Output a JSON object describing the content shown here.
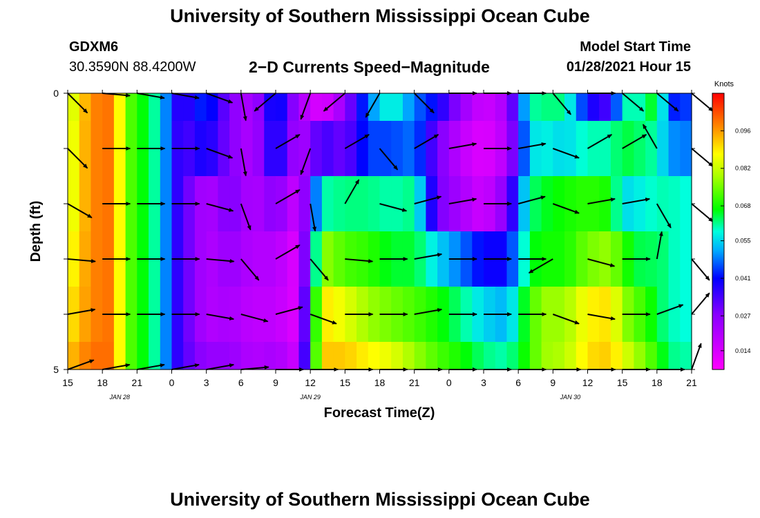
{
  "page": {
    "title": "University of Southern Mississippi Ocean Cube",
    "footer_title": "University of Southern Mississippi Ocean Cube",
    "station_id": "GDXM6",
    "coordinates": "30.3590N 88.4200W",
    "model_start_label": "Model Start Time",
    "model_start_value": "01/28/2021 Hour 15"
  },
  "chart_data": {
    "type": "heatmap",
    "title": "2−D Currents Speed−Magnitude",
    "xlabel": "Forecast Time(Z)",
    "ylabel": "Depth (ft)",
    "x_hours": [
      0,
      3,
      6,
      9,
      12,
      15,
      18,
      21,
      24,
      27,
      30,
      33,
      36,
      39,
      42,
      45,
      48,
      51,
      54
    ],
    "x_tick_labels": [
      "15",
      "18",
      "21",
      "0",
      "3",
      "6",
      "9",
      "12",
      "15",
      "18",
      "21",
      "0",
      "3",
      "6",
      "9",
      "12",
      "15",
      "18",
      "21"
    ],
    "date_labels": [
      {
        "hour": 4.5,
        "text": "JAN  28"
      },
      {
        "hour": 21,
        "text": "JAN  29"
      },
      {
        "hour": 43.5,
        "text": "JAN  30"
      }
    ],
    "y_tick_labels": [
      "0",
      "5"
    ],
    "ylim": [
      0,
      5
    ],
    "depth_bands": 5,
    "colorbar": {
      "unit": "Knots",
      "range": [
        0.007,
        0.11
      ],
      "ticks": [
        0.014,
        0.027,
        0.041,
        0.055,
        0.068,
        0.082,
        0.096
      ]
    },
    "speed_anchors_hours": [
      0,
      2,
      4,
      5,
      8,
      9,
      10,
      12,
      14,
      16,
      18,
      20,
      22,
      24,
      26,
      28,
      30,
      32,
      34,
      36,
      38,
      40,
      41,
      43,
      45,
      47,
      48,
      50,
      51,
      52,
      54
    ],
    "speed_rows_knots": [
      [
        0.08,
        0.098,
        0.1,
        0.075,
        0.058,
        0.04,
        0.035,
        0.045,
        0.028,
        0.02,
        0.045,
        0.022,
        0.012,
        0.025,
        0.048,
        0.06,
        0.048,
        0.04,
        0.025,
        0.015,
        0.022,
        0.06,
        0.062,
        0.062,
        0.04,
        0.033,
        0.06,
        0.06,
        0.07,
        0.042,
        0.045
      ],
      [
        0.082,
        0.098,
        0.1,
        0.075,
        0.058,
        0.04,
        0.033,
        0.04,
        0.028,
        0.02,
        0.042,
        0.02,
        0.035,
        0.03,
        0.045,
        0.045,
        0.048,
        0.03,
        0.018,
        0.012,
        0.02,
        0.055,
        0.058,
        0.055,
        0.06,
        0.06,
        0.065,
        0.062,
        0.06,
        0.05,
        0.048
      ],
      [
        0.082,
        0.098,
        0.1,
        0.075,
        0.058,
        0.04,
        0.033,
        0.02,
        0.03,
        0.02,
        0.028,
        0.015,
        0.06,
        0.062,
        0.062,
        0.06,
        0.062,
        0.03,
        0.022,
        0.015,
        0.028,
        0.062,
        0.065,
        0.068,
        0.07,
        0.068,
        0.055,
        0.058,
        0.06,
        0.06,
        0.058
      ],
      [
        0.085,
        0.098,
        0.1,
        0.075,
        0.058,
        0.04,
        0.033,
        0.02,
        0.025,
        0.02,
        0.02,
        0.012,
        0.078,
        0.072,
        0.07,
        0.065,
        0.065,
        0.055,
        0.048,
        0.04,
        0.04,
        0.065,
        0.068,
        0.068,
        0.075,
        0.078,
        0.07,
        0.062,
        0.065,
        0.06,
        0.058
      ],
      [
        0.088,
        0.098,
        0.1,
        0.075,
        0.058,
        0.04,
        0.033,
        0.02,
        0.022,
        0.018,
        0.018,
        0.012,
        0.09,
        0.085,
        0.078,
        0.075,
        0.072,
        0.068,
        0.062,
        0.055,
        0.052,
        0.07,
        0.078,
        0.078,
        0.088,
        0.09,
        0.078,
        0.07,
        0.065,
        0.06,
        0.058
      ],
      [
        0.092,
        0.1,
        0.1,
        0.075,
        0.058,
        0.04,
        0.033,
        0.025,
        0.025,
        0.02,
        0.022,
        0.015,
        0.092,
        0.092,
        0.088,
        0.085,
        0.078,
        0.072,
        0.068,
        0.062,
        0.06,
        0.07,
        0.078,
        0.08,
        0.09,
        0.092,
        0.085,
        0.075,
        0.07,
        0.062,
        0.06
      ]
    ],
    "vector_hours": [
      0,
      3,
      6,
      9,
      12,
      15,
      18,
      21,
      24,
      27,
      30,
      33,
      36,
      39,
      42,
      45,
      48,
      51,
      54
    ],
    "vector_dirs_deg": [
      [
        -45,
        -5,
        -10,
        -10,
        -20,
        -80,
        220,
        250,
        220,
        240,
        -45,
        0,
        0,
        0,
        -50,
        0,
        -40,
        -40,
        -40
      ],
      [
        -45,
        0,
        0,
        0,
        -20,
        -80,
        30,
        250,
        30,
        -50,
        30,
        10,
        0,
        10,
        -20,
        30,
        30,
        120,
        -40
      ],
      [
        -30,
        0,
        0,
        0,
        -15,
        -70,
        30,
        -80,
        60,
        -15,
        15,
        10,
        0,
        15,
        -20,
        10,
        10,
        -60,
        -40
      ],
      [
        -5,
        0,
        0,
        0,
        -5,
        -50,
        30,
        -50,
        -5,
        0,
        10,
        0,
        0,
        0,
        210,
        -15,
        0,
        80,
        -50
      ],
      [
        10,
        0,
        0,
        0,
        -10,
        -15,
        15,
        -20,
        0,
        0,
        10,
        0,
        0,
        0,
        -20,
        -10,
        0,
        20,
        50
      ],
      [
        20,
        10,
        10,
        10,
        10,
        5,
        0,
        0,
        0,
        0,
        0,
        0,
        0,
        0,
        0,
        0,
        0,
        0,
        70
      ]
    ],
    "vector_length_scale": 0.8
  }
}
